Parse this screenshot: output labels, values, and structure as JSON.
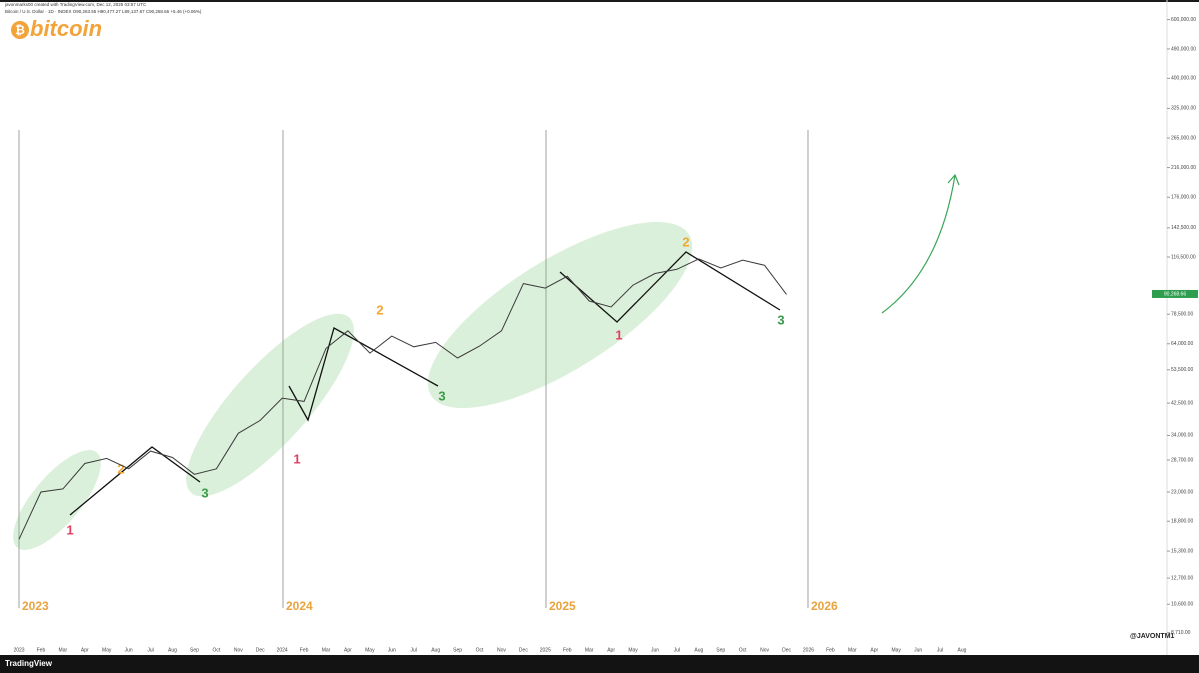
{
  "header": {
    "credit": "javonmarks00 created with TradingView.com, Dec 12, 2025 03:57 UTC",
    "symbol": "Bitcoin / U.S. Dollar · 1D · INDEX  O90,263.55 H90,477.27 L89,137.67 C90,268.66 +5.46 (+0.06%)",
    "logo": "bitcoin"
  },
  "chart_data": {
    "type": "line",
    "log_scale": true,
    "categories": [
      "2023",
      "Feb",
      "Mar",
      "Apr",
      "May",
      "Jun",
      "Jul",
      "Aug",
      "Sep",
      "Oct",
      "Nov",
      "Dec",
      "2024",
      "Feb",
      "Mar",
      "Apr",
      "May",
      "Jun",
      "Jul",
      "Aug",
      "Sep",
      "Oct",
      "Nov",
      "Dec",
      "2025",
      "Feb",
      "Mar",
      "Apr",
      "May",
      "Jun",
      "Jul",
      "Aug",
      "Sep",
      "Oct",
      "Nov",
      "Dec",
      "2026",
      "Feb",
      "Mar",
      "Apr",
      "May",
      "Jun",
      "Jul",
      "Aug"
    ],
    "series": [
      {
        "name": "Bitcoin / U.S. Dollar",
        "color": "#3a3a3a",
        "values": [
          16600,
          23000,
          23500,
          28000,
          29000,
          27000,
          30500,
          29200,
          26000,
          27000,
          34500,
          37700,
          44000,
          43000,
          62000,
          70000,
          60000,
          67500,
          62700,
          64600,
          58000,
          63000,
          70000,
          97000,
          94000,
          102000,
          86000,
          82500,
          96000,
          104000,
          107000,
          115000,
          108000,
          114000,
          110000,
          90000,
          null,
          null,
          null,
          null,
          null,
          null,
          null,
          null
        ]
      }
    ],
    "ylim": [
      8000,
      650000
    ],
    "yticks": [
      {
        "value": 8710,
        "label": "8,710.00"
      },
      {
        "value": 10600,
        "label": "10,600.00"
      },
      {
        "value": 12700,
        "label": "12,700.00"
      },
      {
        "value": 15300,
        "label": "15,300.00"
      },
      {
        "value": 18800,
        "label": "18,800.00"
      },
      {
        "value": 23000,
        "label": "23,000.00"
      },
      {
        "value": 28700,
        "label": "28,700.00"
      },
      {
        "value": 34000,
        "label": "34,000.00"
      },
      {
        "value": 42500,
        "label": "42,500.00"
      },
      {
        "value": 53500,
        "label": "53,500.00"
      },
      {
        "value": 64000,
        "label": "64,000.00"
      },
      {
        "value": 78500,
        "label": "78,500.00"
      },
      {
        "value": 116500,
        "label": "116,500.00"
      },
      {
        "value": 142500,
        "label": "142,500.00"
      },
      {
        "value": 176000,
        "label": "176,000.00"
      },
      {
        "value": 216000,
        "label": "216,000.00"
      },
      {
        "value": 265000,
        "label": "265,000.00"
      },
      {
        "value": 325000,
        "label": "325,000.00"
      },
      {
        "value": 400000,
        "label": "400,000.00"
      },
      {
        "value": 490000,
        "label": "490,000.00"
      },
      {
        "value": 600000,
        "label": "600,000.00"
      }
    ],
    "last_price": {
      "value": 90268.66,
      "label": "90,268.66"
    },
    "annotations": [
      "1",
      "2",
      "3",
      "1",
      "2",
      "3",
      "1",
      "2",
      "3"
    ]
  },
  "watermark": "@JAVONTM1",
  "footer": "TradingView"
}
